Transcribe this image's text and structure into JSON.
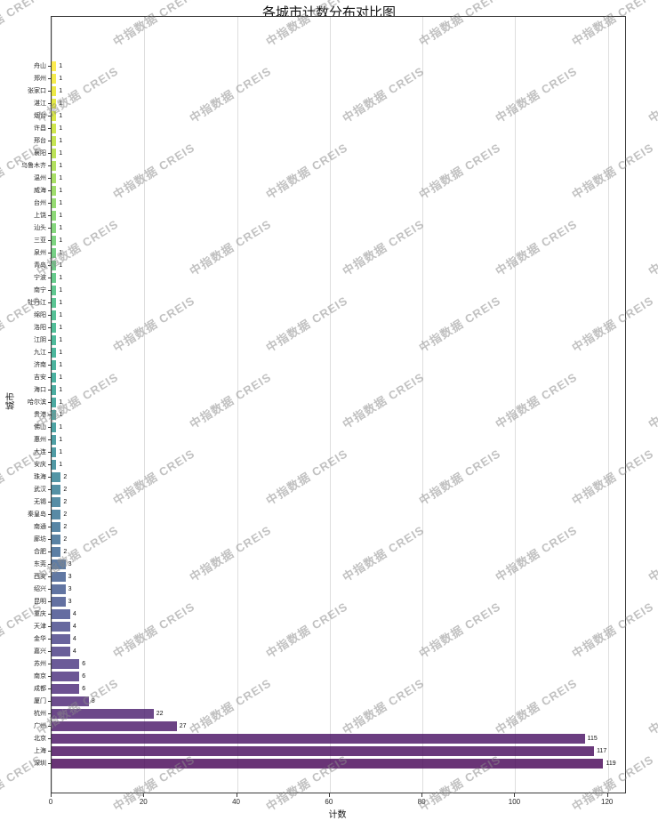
{
  "watermark": {
    "text": "中指数据 CREIS",
    "color": "#8a8a8a",
    "rows": 11,
    "cols": 6,
    "x_start": -52,
    "y_start": 10,
    "col_spacing": 172,
    "row_spacing": 86,
    "stagger": 86
  },
  "chart_data": {
    "type": "bar",
    "orientation": "horizontal",
    "title": "各城市计数分布对比图",
    "xlabel": "计数",
    "ylabel": "城市",
    "xlim": [
      0,
      123.7
    ],
    "xticks": [
      0,
      20,
      40,
      60,
      80,
      100,
      120
    ],
    "grid": true,
    "legend": "none",
    "categories": [
      "舟山",
      "郑州",
      "张家口",
      "湛江",
      "烟台",
      "许昌",
      "邢台",
      "襄阳",
      "乌鲁木齐",
      "温州",
      "威海",
      "台州",
      "上饶",
      "汕头",
      "三亚",
      "泉州",
      "青岛",
      "宁波",
      "南宁",
      "牡丹江",
      "绵阳",
      "洛阳",
      "江阴",
      "九江",
      "济南",
      "吉安",
      "海口",
      "哈尔滨",
      "贵港",
      "佛山",
      "惠州",
      "大连",
      "安庆",
      "珠海",
      "武汉",
      "无锡",
      "秦皇岛",
      "南通",
      "廊坊",
      "合肥",
      "东莞",
      "西安",
      "绍兴",
      "昆明",
      "重庆",
      "天津",
      "金华",
      "嘉兴",
      "苏州",
      "南京",
      "成都",
      "厦门",
      "杭州",
      "广州",
      "北京",
      "上海",
      "深圳"
    ],
    "values": [
      1,
      1,
      1,
      1,
      1,
      1,
      1,
      1,
      1,
      1,
      1,
      1,
      1,
      1,
      1,
      1,
      1,
      1,
      1,
      1,
      1,
      1,
      1,
      1,
      1,
      1,
      1,
      1,
      1,
      1,
      1,
      1,
      1,
      2,
      2,
      2,
      2,
      2,
      2,
      2,
      3,
      3,
      3,
      3,
      4,
      4,
      4,
      4,
      6,
      6,
      6,
      8,
      22,
      27,
      115,
      117,
      119
    ],
    "colors": [
      "#fde725",
      "#f2e621",
      "#e8e419",
      "#dde318",
      "#d0e11c",
      "#c4e022",
      "#b8de29",
      "#acdc30",
      "#a0da39",
      "#94d741",
      "#88d548",
      "#7cd250",
      "#72cf57",
      "#68cc5e",
      "#5ec962",
      "#55c568",
      "#4bc26c",
      "#42be71",
      "#3bba75",
      "#34b679",
      "#2db27d",
      "#28ae80",
      "#24aa83",
      "#21a585",
      "#20a187",
      "#1e9d89",
      "#1f998a",
      "#20958b",
      "#21918c",
      "#228c8d",
      "#24888e",
      "#25838e",
      "#277f8e",
      "#297b8e",
      "#2b768e",
      "#2d718e",
      "#2e6d8e",
      "#30688e",
      "#32648d",
      "#345f8d",
      "#375b8c",
      "#39568c",
      "#3b528b",
      "#3d4d8a",
      "#3f4889",
      "#414387",
      "#433d84",
      "#453781",
      "#46327e",
      "#472c7a",
      "#482677",
      "#482072",
      "#471a6c",
      "#471467",
      "#460e61",
      "#45075a",
      "#440154"
    ]
  }
}
